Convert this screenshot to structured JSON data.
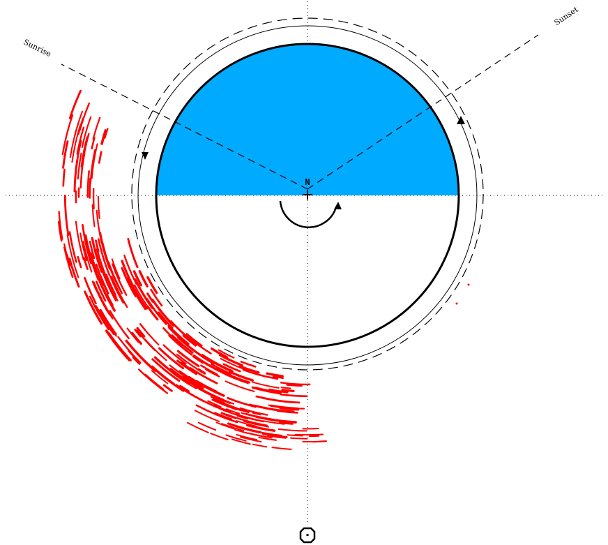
{
  "labels": {
    "sunrise": "Sunrise",
    "sunset": "Sunset",
    "north": "N"
  },
  "colors": {
    "day_fill": "#00aaff",
    "trail": "#ff0000",
    "ink": "#000000"
  }
}
